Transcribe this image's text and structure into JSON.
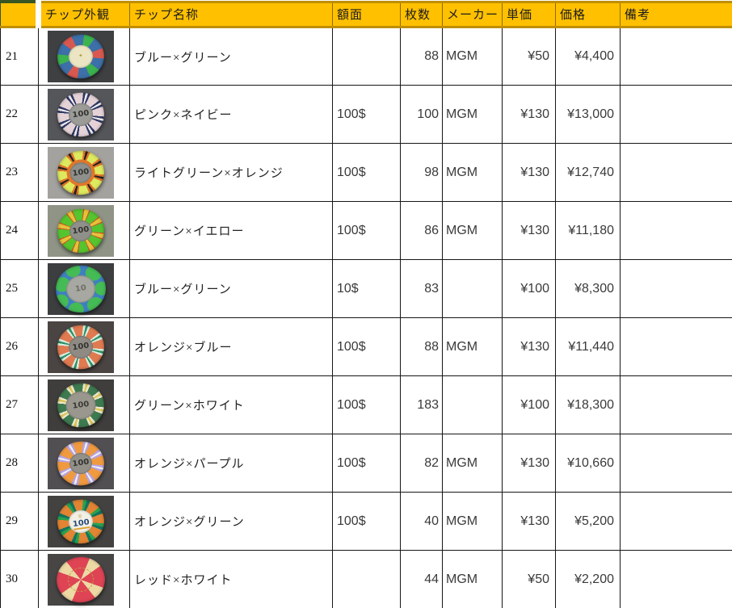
{
  "colors": {
    "header_bg": "#FFC000",
    "header_border": "#BF8F00",
    "green_accent": "#375623",
    "grid_line": "#161616"
  },
  "header": {
    "cells": [
      "",
      "チップ外観",
      "チップ名称",
      "額面",
      "枚数",
      "メーカー",
      "単価",
      "価格",
      "備考"
    ]
  },
  "rows": [
    {
      "no": "21",
      "name": "ブルー×グリーン",
      "denom": "",
      "qty": "88",
      "maker": "MGM",
      "unit": "¥50",
      "price": "¥4,400",
      "note": "",
      "chip": {
        "photo_bg": "#3e4042",
        "base": "#3d6fa8",
        "spot_type": "alt6",
        "spot_colors": [
          "#3bb34e",
          "#d85850"
        ],
        "center_bg": "#ece5c3",
        "center_size": 30,
        "label": "",
        "glyph": "✦",
        "glyph_color": "#b39a3e"
      }
    },
    {
      "no": "22",
      "name": "ピンク×ネイビー",
      "denom": "100$",
      "qty": "100",
      "maker": "MGM",
      "unit": "¥130",
      "price": "¥13,000",
      "note": "",
      "chip": {
        "photo_bg": "#55565a",
        "base": "#e5d2d6",
        "spot_type": "striped8",
        "spot_colors": [
          "#2e3a66",
          "#f3ecee"
        ],
        "center_bg": "#9b9b97",
        "center_size": 30,
        "label": "100",
        "label_color": "#33332f"
      }
    },
    {
      "no": "23",
      "name": "ライトグリーン×オレンジ",
      "denom": "100$",
      "qty": "98",
      "maker": "MGM",
      "unit": "¥130",
      "price": "¥12,740",
      "note": "",
      "chip": {
        "photo_bg": "#a3a29e",
        "base": "#dde95e",
        "spot_type": "striped8",
        "spot_colors": [
          "#e0762a",
          "#272220"
        ],
        "center_bg": "#8f8f8b",
        "center_size": 27,
        "label": "100",
        "label_color": "#33332f",
        "ring": "#e0762a"
      }
    },
    {
      "no": "24",
      "name": "グリーン×イエロー",
      "denom": "100$",
      "qty": "86",
      "maker": "MGM",
      "unit": "¥130",
      "price": "¥11,180",
      "note": "",
      "chip": {
        "photo_bg": "#8f9487",
        "base": "#55c42e",
        "spot_type": "edged8",
        "spot_colors": [
          "#e6c23a",
          "#cc5522"
        ],
        "center_bg": "#8f9089",
        "center_size": 28,
        "label": "100",
        "label_color": "#33332f"
      }
    },
    {
      "no": "25",
      "name": "ブルー×グリーン",
      "denom": "10$",
      "qty": "83",
      "maker": "",
      "unit": "¥100",
      "price": "¥8,300",
      "note": "",
      "chip": {
        "photo_bg": "#3c3e40",
        "base": "#3f7fc0",
        "spot_type": "splotch",
        "spot_colors": [
          "#44bb55"
        ],
        "center_bg": "#a8a8a2",
        "center_size": 36,
        "label": "10",
        "label_color": "#6e6e66"
      }
    },
    {
      "no": "26",
      "name": "オレンジ×ブルー",
      "denom": "100$",
      "qty": "88",
      "maker": "MGM",
      "unit": "¥130",
      "price": "¥11,440",
      "note": "",
      "chip": {
        "photo_bg": "#4a4442",
        "base": "#e07a50",
        "spot_type": "striped8",
        "spot_colors": [
          "#d8ece0",
          "#2f8f63"
        ],
        "center_bg": "#8f8a84",
        "center_size": 30,
        "label": "100",
        "label_color": "#33332f"
      }
    },
    {
      "no": "27",
      "name": "グリーン×ホワイト",
      "denom": "100$",
      "qty": "183",
      "maker": "",
      "unit": "¥100",
      "price": "¥18,300",
      "note": "",
      "chip": {
        "photo_bg": "#3f3e3c",
        "base": "#3e7a50",
        "spot_type": "striped8",
        "spot_colors": [
          "#ece6cc",
          "#d8c452"
        ],
        "center_bg": "#9a978f",
        "center_size": 37,
        "label": "100",
        "label_color": "#3a3a34"
      }
    },
    {
      "no": "28",
      "name": "オレンジ×パープル",
      "denom": "100$",
      "qty": "82",
      "maker": "MGM",
      "unit": "¥130",
      "price": "¥10,660",
      "note": "",
      "chip": {
        "photo_bg": "#514f52",
        "base": "#f09a40",
        "spot_type": "striped8",
        "spot_colors": [
          "#b4a2e2",
          "#f2eef4"
        ],
        "center_bg": "#93908a",
        "center_size": 28,
        "label": "100",
        "label_color": "#33332f"
      }
    },
    {
      "no": "29",
      "name": "オレンジ×グリーン",
      "denom": "100$",
      "qty": "40",
      "maker": "MGM",
      "unit": "¥130",
      "price": "¥5,200",
      "note": "",
      "chip": {
        "photo_bg": "#434240",
        "base": "#e28433",
        "spot_type": "duo8",
        "spot_colors": [
          "#2ba24e",
          "#13745e"
        ],
        "center_bg": "#f2efe6",
        "center_size": 30,
        "label": "100",
        "label_color": "#274a7a",
        "glyph": "♕",
        "glyph_color": "#b9942c",
        "underline": "#e0a030"
      }
    },
    {
      "no": "30",
      "name": "レッド×ホワイト",
      "denom": "",
      "qty": "44",
      "maker": "MGM",
      "unit": "¥50",
      "price": "¥2,200",
      "note": "",
      "chip": {
        "photo_bg": "#474645",
        "base": "#df4455",
        "spot_type": "wide4",
        "spot_colors": [
          "#ecd9a4"
        ],
        "center_bg": "transparent",
        "center_size": 30,
        "label": "",
        "ring_text": "#c09a3a"
      }
    }
  ],
  "partial_next_row": {
    "photo_bg": "#3a3a3a"
  }
}
